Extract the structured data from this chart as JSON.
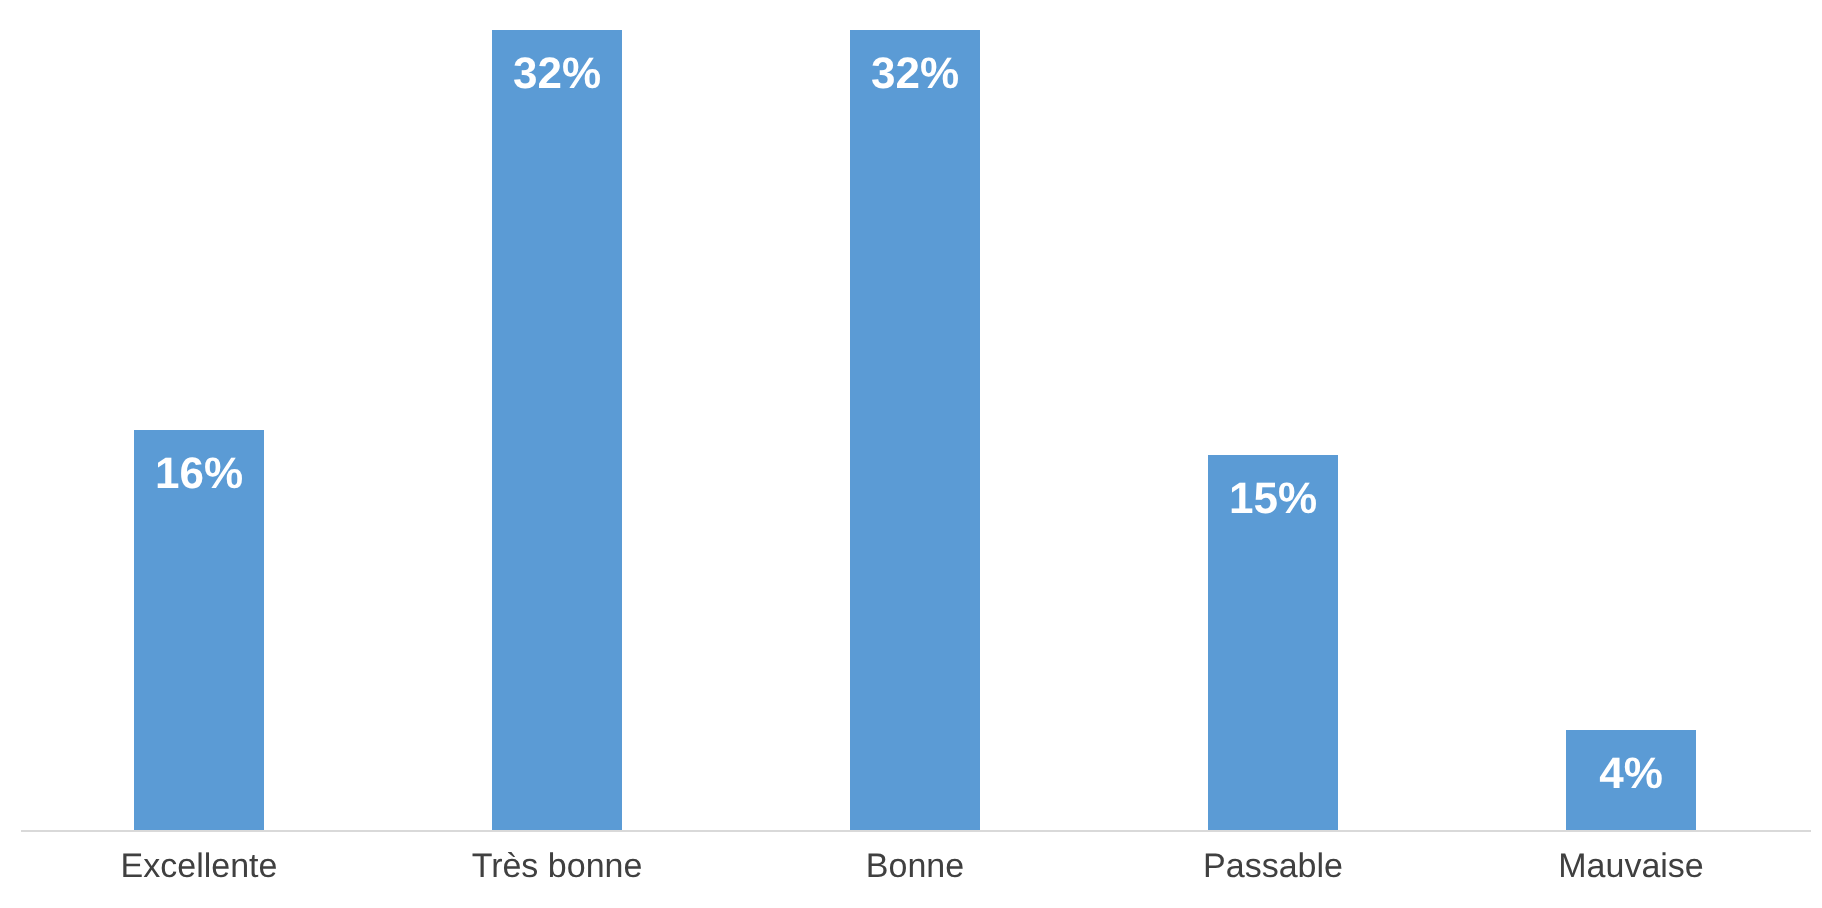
{
  "chart_data": {
    "type": "bar",
    "categories": [
      "Excellente",
      "Très bonne",
      "Bonne",
      "Passable",
      "Mauvaise"
    ],
    "values": [
      16,
      32,
      32,
      15,
      4
    ],
    "value_labels": [
      "16%",
      "32%",
      "32%",
      "15%",
      "4%"
    ],
    "color": "#5b9bd5",
    "grid": false
  }
}
